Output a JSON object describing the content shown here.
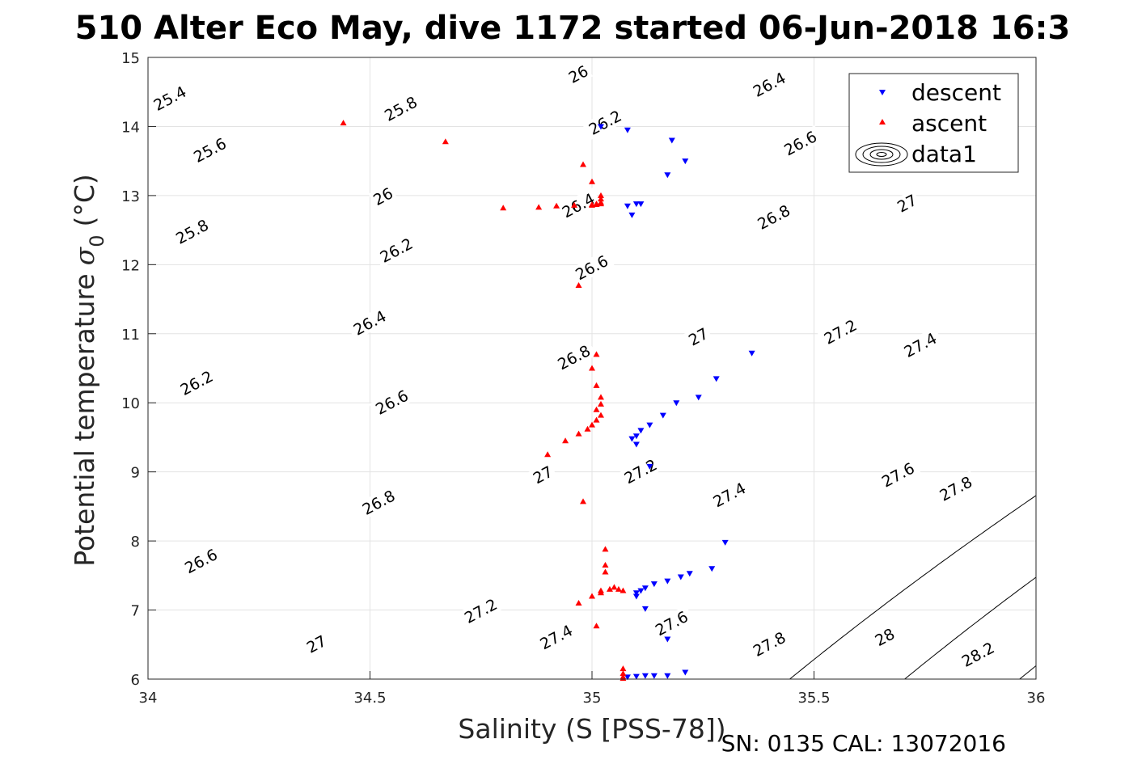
{
  "title": "510 Alter Eco May, dive 1172 started 06-Jun-2018 16:3",
  "footer": "SN: 0135  CAL: 13072016",
  "chart_data": {
    "type": "scatter",
    "xlabel": "Salinity (S [PSS-78])",
    "ylabel_main": "Potential temperature",
    "ylabel_sigma": "σ",
    "ylabel_sub": "0",
    "ylabel_unit": "(°C)",
    "xlim": [
      34,
      36
    ],
    "ylim": [
      6,
      15
    ],
    "xticks": [
      "34",
      "34.5",
      "35",
      "35.5",
      "36"
    ],
    "yticks": [
      "6",
      "7",
      "8",
      "9",
      "10",
      "11",
      "12",
      "13",
      "14",
      "15"
    ],
    "grid": true,
    "legend_position": "top-right",
    "contour_levels": [
      "25.4",
      "25.6",
      "25.8",
      "26",
      "26.2",
      "26.4",
      "26.6",
      "26.8",
      "27",
      "27.2",
      "27.4",
      "27.6",
      "27.8",
      "28",
      "28.2"
    ],
    "contour_labels": [
      {
        "text": "25.4",
        "x": 34.05,
        "y": 14.4
      },
      {
        "text": "25.8",
        "x": 34.57,
        "y": 14.25
      },
      {
        "text": "26",
        "x": 34.97,
        "y": 14.75
      },
      {
        "text": "26.4",
        "x": 35.4,
        "y": 14.6
      },
      {
        "text": "25.6",
        "x": 34.14,
        "y": 13.65
      },
      {
        "text": "26.2",
        "x": 35.03,
        "y": 14.05
      },
      {
        "text": "26.6",
        "x": 35.47,
        "y": 13.75
      },
      {
        "text": "26",
        "x": 34.53,
        "y": 12.98
      },
      {
        "text": "26.4",
        "x": 34.97,
        "y": 12.85
      },
      {
        "text": "25.8",
        "x": 34.1,
        "y": 12.47
      },
      {
        "text": "26.2",
        "x": 34.56,
        "y": 12.2
      },
      {
        "text": "26.8",
        "x": 35.41,
        "y": 12.68
      },
      {
        "text": "27",
        "x": 35.71,
        "y": 12.88
      },
      {
        "text": "26.6",
        "x": 35.0,
        "y": 11.95
      },
      {
        "text": "26.4",
        "x": 34.5,
        "y": 11.15
      },
      {
        "text": "27",
        "x": 35.24,
        "y": 10.95
      },
      {
        "text": "27.2",
        "x": 35.56,
        "y": 11.02
      },
      {
        "text": "27.4",
        "x": 35.74,
        "y": 10.83
      },
      {
        "text": "26.8",
        "x": 34.96,
        "y": 10.65
      },
      {
        "text": "26.2",
        "x": 34.11,
        "y": 10.28
      },
      {
        "text": "26.6",
        "x": 34.55,
        "y": 10.0
      },
      {
        "text": "27.2",
        "x": 35.11,
        "y": 9.0
      },
      {
        "text": "27",
        "x": 34.89,
        "y": 8.95
      },
      {
        "text": "27.4",
        "x": 35.31,
        "y": 8.66
      },
      {
        "text": "27.6",
        "x": 35.69,
        "y": 8.95
      },
      {
        "text": "27.8",
        "x": 35.82,
        "y": 8.75
      },
      {
        "text": "26.8",
        "x": 34.52,
        "y": 8.55
      },
      {
        "text": "26.6",
        "x": 34.12,
        "y": 7.7
      },
      {
        "text": "27.2",
        "x": 34.75,
        "y": 6.98
      },
      {
        "text": "27.6",
        "x": 35.18,
        "y": 6.8
      },
      {
        "text": "27.4",
        "x": 34.92,
        "y": 6.6
      },
      {
        "text": "27",
        "x": 34.38,
        "y": 6.5
      },
      {
        "text": "27.8",
        "x": 35.4,
        "y": 6.5
      },
      {
        "text": "28",
        "x": 35.66,
        "y": 6.6
      },
      {
        "text": "28.2",
        "x": 35.87,
        "y": 6.35
      }
    ],
    "series": [
      {
        "name": "descent",
        "color": "#0000ff",
        "marker": "triangle-down",
        "x": [
          35.02,
          35.08,
          35.18,
          35.21,
          35.17,
          35.08,
          35.1,
          35.11,
          35.09,
          35.36,
          35.28,
          35.24,
          35.19,
          35.16,
          35.13,
          35.11,
          35.1,
          35.09,
          35.1,
          35.13,
          35.3,
          35.27,
          35.22,
          35.2,
          35.17,
          35.14,
          35.12,
          35.11,
          35.1,
          35.1,
          35.12,
          35.17,
          35.08,
          35.1,
          35.12,
          35.14,
          35.17,
          35.21
        ],
        "y": [
          14.0,
          13.95,
          13.8,
          13.5,
          13.3,
          12.85,
          12.88,
          12.88,
          12.72,
          10.72,
          10.35,
          10.08,
          10.0,
          9.82,
          9.68,
          9.6,
          9.52,
          9.48,
          9.4,
          9.08,
          7.98,
          7.6,
          7.53,
          7.48,
          7.42,
          7.38,
          7.32,
          7.28,
          7.25,
          7.2,
          7.02,
          6.58,
          6.03,
          6.04,
          6.05,
          6.05,
          6.05,
          6.1
        ]
      },
      {
        "name": "ascent",
        "color": "#ff0000",
        "marker": "triangle-up",
        "x": [
          34.44,
          34.67,
          34.8,
          34.88,
          34.92,
          34.96,
          34.98,
          35.0,
          35.01,
          35.02,
          35.02,
          35.02,
          35.01,
          35.0,
          35.0,
          35.02,
          34.97,
          35.01,
          35.0,
          35.01,
          35.02,
          35.02,
          35.01,
          35.02,
          35.01,
          35.0,
          34.99,
          34.97,
          34.94,
          34.9,
          34.98,
          35.03,
          35.03,
          35.03,
          35.02,
          35.04,
          35.05,
          35.06,
          35.07,
          35.02,
          35.0,
          34.97,
          35.01,
          35.07,
          35.07,
          35.07,
          35.07
        ],
        "y": [
          14.05,
          13.78,
          12.82,
          12.83,
          12.85,
          12.86,
          13.45,
          13.2,
          12.88,
          12.9,
          12.95,
          13.0,
          12.87,
          12.86,
          12.87,
          12.88,
          11.7,
          10.7,
          10.5,
          10.25,
          10.08,
          9.98,
          9.9,
          9.82,
          9.75,
          9.68,
          9.62,
          9.55,
          9.45,
          9.25,
          8.57,
          7.88,
          7.65,
          7.55,
          7.28,
          7.3,
          7.33,
          7.3,
          7.28,
          7.25,
          7.2,
          7.1,
          6.77,
          6.15,
          6.08,
          6.03,
          6.01
        ]
      }
    ],
    "legend": [
      "descent",
      "ascent",
      "data1"
    ]
  }
}
